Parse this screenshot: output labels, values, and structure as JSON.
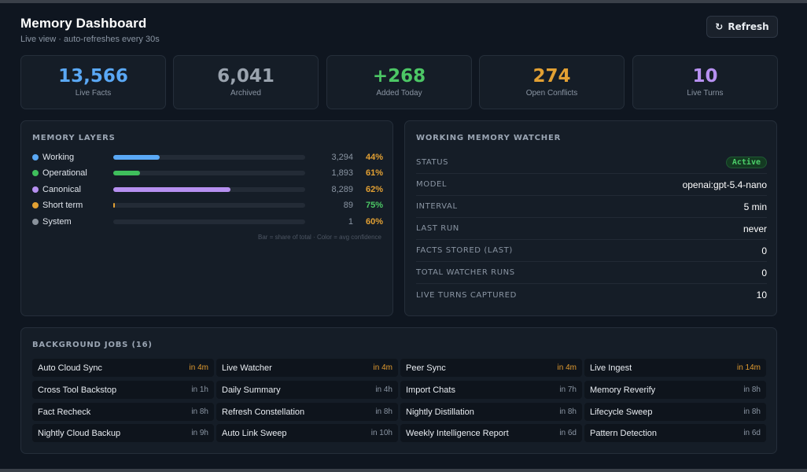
{
  "header": {
    "title": "Memory Dashboard",
    "subtitle": "Live view · auto-refreshes every 30s",
    "refresh_label": "Refresh",
    "refresh_icon": "refresh-icon"
  },
  "stats": [
    {
      "value": "13,566",
      "label": "Live Facts",
      "color": "#5aa8f5"
    },
    {
      "value": "6,041",
      "label": "Archived",
      "color": "#9aa3ae"
    },
    {
      "value": "+268",
      "label": "Added Today",
      "color": "#4cc765"
    },
    {
      "value": "274",
      "label": "Open Conflicts",
      "color": "#e2a033"
    },
    {
      "value": "10",
      "label": "Live Turns",
      "color": "#b690f0"
    }
  ],
  "layers": {
    "title": "MEMORY LAYERS",
    "footnote": "Bar = share of total · Color = avg confidence",
    "items": [
      {
        "name": "Working",
        "count": "3,294",
        "confidence": "44%",
        "share": 0.24,
        "dot_color": "#5aa8f5",
        "conf_color": "#e2a033"
      },
      {
        "name": "Operational",
        "count": "1,893",
        "confidence": "61%",
        "share": 0.14,
        "dot_color": "#3fbf5c",
        "conf_color": "#e2a033"
      },
      {
        "name": "Canonical",
        "count": "8,289",
        "confidence": "62%",
        "share": 0.61,
        "dot_color": "#b690f0",
        "conf_color": "#e2a033"
      },
      {
        "name": "Short term",
        "count": "89",
        "confidence": "75%",
        "share": 0.007,
        "dot_color": "#e2a033",
        "conf_color": "#4cc765"
      },
      {
        "name": "System",
        "count": "1",
        "confidence": "60%",
        "share": 0.0,
        "dot_color": "#8a929c",
        "conf_color": "#e2a033"
      }
    ]
  },
  "watcher": {
    "title": "WORKING MEMORY WATCHER",
    "status_key": "STATUS",
    "status_value": "Active",
    "rows": [
      {
        "key": "MODEL",
        "value": "openai:gpt-5.4-nano"
      },
      {
        "key": "INTERVAL",
        "value": "5 min"
      },
      {
        "key": "LAST RUN",
        "value": "never"
      },
      {
        "key": "FACTS STORED (LAST)",
        "value": "0"
      },
      {
        "key": "TOTAL WATCHER RUNS",
        "value": "0"
      },
      {
        "key": "LIVE TURNS CAPTURED",
        "value": "10"
      }
    ]
  },
  "jobs": {
    "title": "BACKGROUND JOBS (16)",
    "items": [
      {
        "name": "Auto Cloud Sync",
        "time": "in 4m",
        "soon": true
      },
      {
        "name": "Live Watcher",
        "time": "in 4m",
        "soon": true
      },
      {
        "name": "Peer Sync",
        "time": "in 4m",
        "soon": true
      },
      {
        "name": "Live Ingest",
        "time": "in 14m",
        "soon": true
      },
      {
        "name": "Cross Tool Backstop",
        "time": "in 1h",
        "soon": false
      },
      {
        "name": "Daily Summary",
        "time": "in 4h",
        "soon": false
      },
      {
        "name": "Import Chats",
        "time": "in 7h",
        "soon": false
      },
      {
        "name": "Memory Reverify",
        "time": "in 8h",
        "soon": false
      },
      {
        "name": "Fact Recheck",
        "time": "in 8h",
        "soon": false
      },
      {
        "name": "Refresh Constellation",
        "time": "in 8h",
        "soon": false
      },
      {
        "name": "Nightly Distillation",
        "time": "in 8h",
        "soon": false
      },
      {
        "name": "Lifecycle Sweep",
        "time": "in 8h",
        "soon": false
      },
      {
        "name": "Nightly Cloud Backup",
        "time": "in 9h",
        "soon": false
      },
      {
        "name": "Auto Link Sweep",
        "time": "in 10h",
        "soon": false
      },
      {
        "name": "Weekly Intelligence Report",
        "time": "in 6d",
        "soon": false
      },
      {
        "name": "Pattern Detection",
        "time": "in 6d",
        "soon": false
      }
    ]
  }
}
